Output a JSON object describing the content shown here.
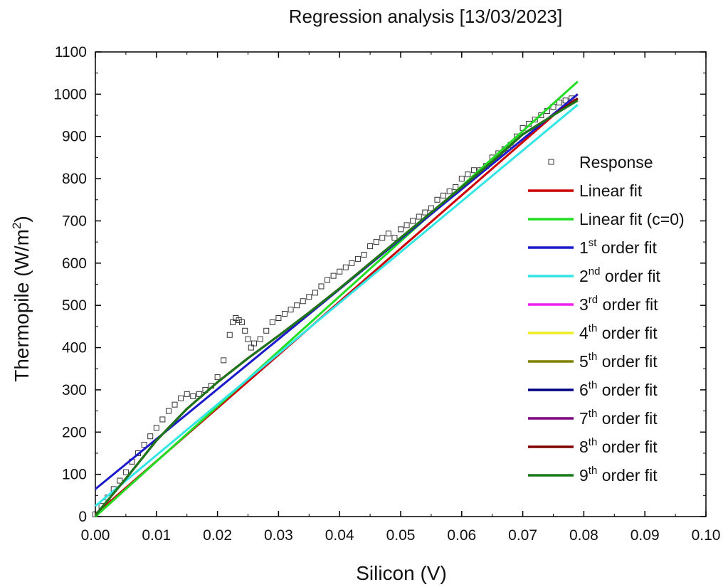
{
  "chart_data": {
    "type": "scatter",
    "title": "Regression analysis [13/03/2023]",
    "xlabel": "Silicon (V)",
    "ylabel": {
      "main": "Thermopile (W/m",
      "sup": "2",
      "close": ")"
    },
    "xlim": [
      0,
      0.1
    ],
    "ylim": [
      0,
      1100
    ],
    "xticks": [
      "0.00",
      "0.01",
      "0.02",
      "0.03",
      "0.04",
      "0.05",
      "0.06",
      "0.07",
      "0.08",
      "0.09",
      "0.10"
    ],
    "yticks": [
      "0",
      "100",
      "200",
      "300",
      "400",
      "500",
      "600",
      "700",
      "800",
      "900",
      "1000",
      "1100"
    ],
    "grid": false,
    "legend_position": "right",
    "scatter": {
      "name": "Response",
      "x": [
        0.0,
        0.001,
        0.002,
        0.003,
        0.004,
        0.005,
        0.006,
        0.007,
        0.008,
        0.009,
        0.01,
        0.011,
        0.012,
        0.013,
        0.014,
        0.015,
        0.016,
        0.017,
        0.018,
        0.019,
        0.02,
        0.021,
        0.022,
        0.0225,
        0.023,
        0.0235,
        0.024,
        0.0245,
        0.025,
        0.0255,
        0.026,
        0.027,
        0.028,
        0.029,
        0.03,
        0.031,
        0.032,
        0.033,
        0.034,
        0.035,
        0.036,
        0.037,
        0.038,
        0.039,
        0.04,
        0.041,
        0.042,
        0.043,
        0.044,
        0.045,
        0.046,
        0.047,
        0.048,
        0.049,
        0.05,
        0.051,
        0.052,
        0.053,
        0.054,
        0.055,
        0.056,
        0.057,
        0.058,
        0.059,
        0.06,
        0.061,
        0.062,
        0.063,
        0.064,
        0.065,
        0.066,
        0.067,
        0.068,
        0.069,
        0.07,
        0.071,
        0.072,
        0.073,
        0.074,
        0.075,
        0.076,
        0.077,
        0.078
      ],
      "y": [
        5,
        25,
        45,
        65,
        85,
        105,
        130,
        150,
        170,
        190,
        210,
        230,
        250,
        265,
        280,
        290,
        285,
        290,
        300,
        310,
        330,
        370,
        430,
        460,
        470,
        465,
        460,
        440,
        420,
        400,
        410,
        420,
        440,
        460,
        470,
        480,
        490,
        500,
        510,
        520,
        530,
        545,
        560,
        570,
        580,
        590,
        600,
        610,
        620,
        640,
        650,
        660,
        670,
        660,
        680,
        690,
        700,
        710,
        720,
        730,
        750,
        760,
        770,
        780,
        800,
        810,
        820,
        820,
        830,
        850,
        860,
        870,
        880,
        900,
        920,
        930,
        940,
        950,
        960,
        970,
        980,
        985,
        990
      ]
    },
    "series": [
      {
        "name": "Linear fit",
        "color": "#cc0000",
        "x": [
          0,
          0.079
        ],
        "y": [
          5,
          1000
        ]
      },
      {
        "name": "Linear fit (c=0)",
        "color": "#22dd22",
        "x": [
          0,
          0.079
        ],
        "y": [
          0,
          1030
        ]
      },
      {
        "name": "1st order fit",
        "color": "#1a1acc",
        "x": [
          0,
          0.079
        ],
        "y": [
          65,
          1000
        ]
      },
      {
        "name": "2nd order fit",
        "color": "#33e6e6",
        "x": [
          0,
          0.079
        ],
        "y": [
          25,
          975
        ]
      },
      {
        "name": "3rd order fit",
        "color": "#ee22ee",
        "x": [
          0,
          0.005,
          0.01,
          0.015,
          0.02,
          0.025,
          0.03,
          0.035,
          0.04,
          0.045,
          0.05,
          0.055,
          0.06,
          0.065,
          0.07,
          0.075,
          0.079
        ],
        "y": [
          3,
          90,
          180,
          255,
          318,
          375,
          428,
          483,
          540,
          600,
          660,
          720,
          780,
          840,
          905,
          950,
          990
        ]
      },
      {
        "name": "4th order fit",
        "color": "#eeee22",
        "x": [
          0,
          0.005,
          0.01,
          0.015,
          0.02,
          0.025,
          0.03,
          0.035,
          0.04,
          0.045,
          0.05,
          0.055,
          0.06,
          0.065,
          0.07,
          0.075,
          0.079
        ],
        "y": [
          3,
          90,
          180,
          255,
          318,
          375,
          428,
          483,
          540,
          600,
          660,
          720,
          780,
          840,
          905,
          950,
          990
        ]
      },
      {
        "name": "5th order fit",
        "color": "#808000",
        "x": [
          0,
          0.005,
          0.01,
          0.015,
          0.02,
          0.025,
          0.03,
          0.035,
          0.04,
          0.045,
          0.05,
          0.055,
          0.06,
          0.065,
          0.07,
          0.075,
          0.079
        ],
        "y": [
          3,
          90,
          180,
          255,
          318,
          375,
          428,
          483,
          540,
          600,
          660,
          720,
          780,
          840,
          905,
          950,
          990
        ]
      },
      {
        "name": "6th order fit",
        "color": "#000080",
        "x": [
          0,
          0.005,
          0.01,
          0.015,
          0.02,
          0.025,
          0.03,
          0.035,
          0.04,
          0.045,
          0.05,
          0.055,
          0.06,
          0.065,
          0.07,
          0.075,
          0.079
        ],
        "y": [
          3,
          90,
          180,
          255,
          318,
          375,
          428,
          483,
          540,
          600,
          660,
          720,
          780,
          840,
          905,
          950,
          990
        ]
      },
      {
        "name": "7th order fit",
        "color": "#800080",
        "x": [
          0,
          0.005,
          0.01,
          0.015,
          0.02,
          0.025,
          0.03,
          0.035,
          0.04,
          0.045,
          0.05,
          0.055,
          0.06,
          0.065,
          0.07,
          0.075,
          0.079
        ],
        "y": [
          3,
          90,
          180,
          255,
          318,
          375,
          428,
          483,
          540,
          600,
          660,
          720,
          780,
          840,
          905,
          950,
          990
        ]
      },
      {
        "name": "8th order fit",
        "color": "#800000",
        "x": [
          0,
          0.005,
          0.01,
          0.015,
          0.02,
          0.025,
          0.03,
          0.035,
          0.04,
          0.045,
          0.05,
          0.055,
          0.06,
          0.065,
          0.07,
          0.075,
          0.079
        ],
        "y": [
          3,
          90,
          180,
          255,
          318,
          375,
          428,
          483,
          540,
          600,
          660,
          720,
          780,
          840,
          905,
          950,
          990
        ]
      },
      {
        "name": "9th order fit",
        "color": "#1a7a1a",
        "x": [
          0,
          0.005,
          0.01,
          0.015,
          0.02,
          0.025,
          0.03,
          0.035,
          0.04,
          0.045,
          0.05,
          0.055,
          0.06,
          0.065,
          0.07,
          0.075,
          0.079
        ],
        "y": [
          3,
          90,
          180,
          255,
          318,
          375,
          428,
          483,
          540,
          600,
          660,
          720,
          780,
          840,
          905,
          950,
          985
        ]
      }
    ],
    "legend": [
      {
        "name": "Response",
        "type": "marker"
      },
      {
        "name": "Linear fit",
        "color": "#cc0000"
      },
      {
        "name": "Linear fit (c=0)",
        "color": "#22dd22"
      },
      {
        "base": "1",
        "sup": "st",
        "rest": " order fit",
        "color": "#1a1acc"
      },
      {
        "base": "2",
        "sup": "nd",
        "rest": " order fit",
        "color": "#33e6e6"
      },
      {
        "base": "3",
        "sup": "rd",
        "rest": " order fit",
        "color": "#ee22ee"
      },
      {
        "base": "4",
        "sup": "th",
        "rest": " order fit",
        "color": "#eeee22"
      },
      {
        "base": "5",
        "sup": "th",
        "rest": " order fit",
        "color": "#808000"
      },
      {
        "base": "6",
        "sup": "th",
        "rest": " order fit",
        "color": "#000080"
      },
      {
        "base": "7",
        "sup": "th",
        "rest": " order fit",
        "color": "#800080"
      },
      {
        "base": "8",
        "sup": "th",
        "rest": " order fit",
        "color": "#800000"
      },
      {
        "base": "9",
        "sup": "th",
        "rest": " order fit",
        "color": "#1a7a1a"
      }
    ]
  }
}
